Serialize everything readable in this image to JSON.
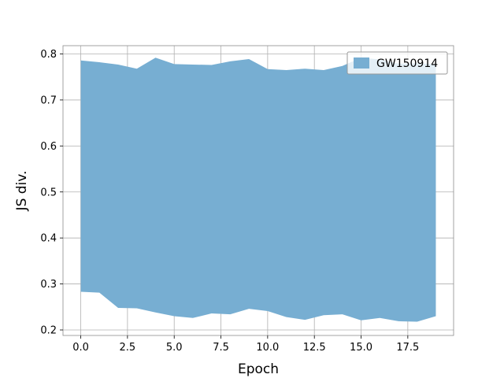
{
  "chart_data": {
    "type": "area",
    "xlabel": "Epoch",
    "ylabel": "JS div.",
    "xlim": [
      -0.95,
      19.95
    ],
    "ylim": [
      0.188,
      0.818
    ],
    "xticks": [
      0.0,
      2.5,
      5.0,
      7.5,
      10.0,
      12.5,
      15.0,
      17.5
    ],
    "xtick_labels": [
      "0.0",
      "2.5",
      "5.0",
      "7.5",
      "10.0",
      "12.5",
      "15.0",
      "17.5"
    ],
    "yticks": [
      0.2,
      0.3,
      0.4,
      0.5,
      0.6,
      0.7,
      0.8
    ],
    "ytick_labels": [
      "0.2",
      "0.3",
      "0.4",
      "0.5",
      "0.6",
      "0.7",
      "0.8"
    ],
    "grid": true,
    "legend_position": "top-right",
    "series": [
      {
        "name": "GW150914",
        "color": "#77aed2",
        "x": [
          0,
          1,
          2,
          3,
          4,
          5,
          6,
          7,
          8,
          9,
          10,
          11,
          12,
          13,
          14,
          15,
          16,
          17,
          18,
          19
        ],
        "upper": [
          0.786,
          0.782,
          0.777,
          0.768,
          0.792,
          0.778,
          0.777,
          0.776,
          0.784,
          0.789,
          0.767,
          0.765,
          0.768,
          0.765,
          0.774,
          0.792,
          0.788,
          0.779,
          0.78,
          0.778
        ],
        "lower": [
          0.283,
          0.281,
          0.248,
          0.247,
          0.238,
          0.23,
          0.226,
          0.236,
          0.234,
          0.246,
          0.241,
          0.228,
          0.222,
          0.232,
          0.234,
          0.221,
          0.226,
          0.219,
          0.218,
          0.23
        ]
      }
    ]
  }
}
